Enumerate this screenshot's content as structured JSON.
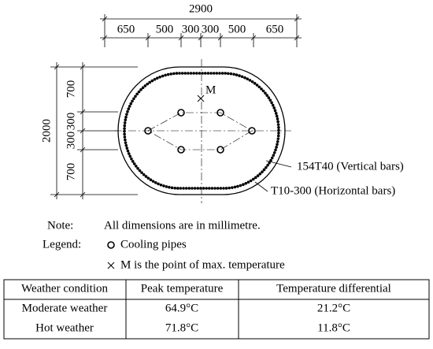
{
  "dimensions": {
    "overall_width": "2900",
    "width_segments": [
      "650",
      "500",
      "300",
      "300",
      "500",
      "650"
    ],
    "overall_height": "2000",
    "height_segments": [
      "700",
      "300",
      "300",
      "700"
    ]
  },
  "drawing": {
    "point_label": "M",
    "vertical_bars": "154T40 (Vertical bars)",
    "horizontal_bars": "T10-300 (Horizontal bars)"
  },
  "notes": {
    "note_label": "Note:",
    "note_text": "All dimensions are in millimetre.",
    "legend_label": "Legend:",
    "legend_items": [
      "Cooling pipes",
      "M is the point of max. temperature"
    ]
  },
  "table": {
    "header": [
      "Weather condition",
      "Peak temperature",
      "Temperature differential"
    ],
    "rows": [
      [
        "Moderate weather",
        "64.9°C",
        "21.2°C"
      ],
      [
        "Hot weather",
        "71.8°C",
        "11.8°C"
      ]
    ]
  }
}
